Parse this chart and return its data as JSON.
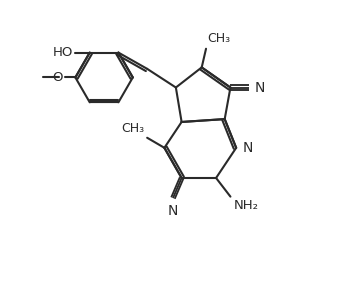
{
  "bg_color": "#ffffff",
  "line_color": "#2a2a2a",
  "line_width": 1.5,
  "font_size": 9.5,
  "fig_width": 3.46,
  "fig_height": 2.87,
  "dpi": 100,
  "xlim": [
    -1,
    11
  ],
  "ylim": [
    -0.5,
    9
  ]
}
